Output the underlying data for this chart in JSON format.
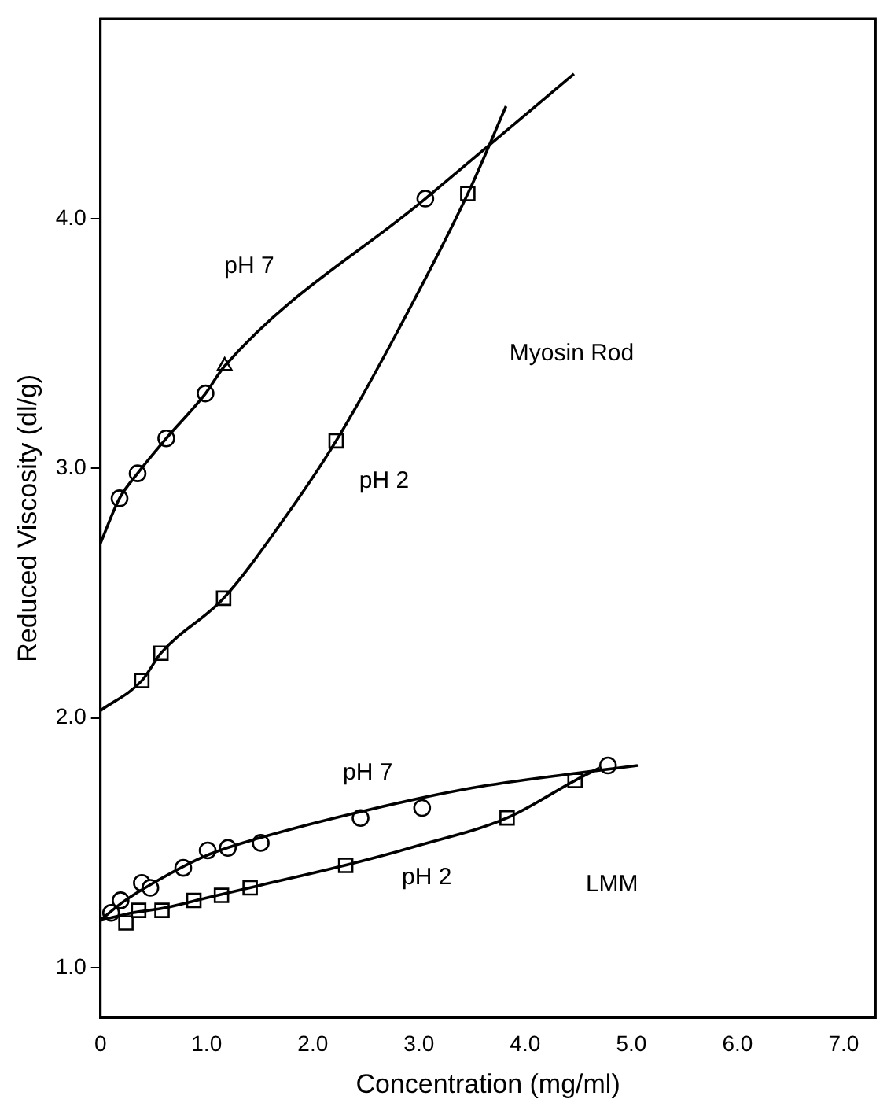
{
  "chart_data": {
    "type": "scatter",
    "xlabel": "Concentration (mg/ml)",
    "ylabel": "Reduced Viscosity (dl/g)",
    "xlim": [
      0,
      7.3
    ],
    "ylim": [
      0.8,
      4.8
    ],
    "xticks": [
      0,
      {
        "value": 1,
        "label": "1.0"
      },
      {
        "value": 2,
        "label": "2.0"
      },
      {
        "value": 3,
        "label": "3.0"
      },
      {
        "value": 4,
        "label": "4.0"
      },
      {
        "value": 5,
        "label": "5.0"
      },
      {
        "value": 6,
        "label": "6.0"
      },
      {
        "value": 7,
        "label": "7.0"
      }
    ],
    "yticks": [
      {
        "value": 1,
        "label": "1.0"
      },
      {
        "value": 2,
        "label": "2.0"
      },
      {
        "value": 3,
        "label": "3.0"
      },
      {
        "value": 4,
        "label": "4.0"
      }
    ],
    "grid": false,
    "legend": false,
    "series": [
      {
        "type": "line",
        "color": "#000000",
        "marker": "none",
        "x": [
          0,
          0.18,
          0.35,
          0.62,
          0.99,
          1.17,
          3.06,
          4.46
        ],
        "values": [
          2.7,
          2.88,
          2.98,
          3.12,
          3.3,
          3.41,
          4.08,
          4.58
        ]
      },
      {
        "type": "line",
        "color": "#000000",
        "marker": "none",
        "x": [
          0,
          0.39,
          0.57,
          1.16,
          1.7,
          2.22,
          2.8,
          3.46,
          3.82
        ],
        "values": [
          2.03,
          2.15,
          2.26,
          2.48,
          2.78,
          3.11,
          3.55,
          4.1,
          4.45
        ]
      },
      {
        "type": "line",
        "color": "#000000",
        "marker": "none",
        "x": [
          0,
          0.2,
          0.5,
          1.0,
          1.5,
          2.5,
          3.5,
          4.5,
          5.06
        ],
        "values": [
          1.19,
          1.26,
          1.34,
          1.45,
          1.52,
          1.63,
          1.72,
          1.78,
          1.81
        ]
      },
      {
        "type": "line",
        "color": "#000000",
        "marker": "none",
        "x": [
          0,
          0.3,
          0.6,
          1.0,
          1.5,
          2.3,
          3.0,
          3.83,
          4.47,
          4.7
        ],
        "values": [
          1.19,
          1.22,
          1.24,
          1.28,
          1.33,
          1.41,
          1.49,
          1.6,
          1.75,
          1.8
        ]
      },
      {
        "type": "scatter",
        "color": "#000000",
        "marker": "circle",
        "x": [
          0.18,
          0.35,
          0.62,
          0.99,
          3.06
        ],
        "values": [
          2.88,
          2.98,
          3.12,
          3.3,
          4.08
        ]
      },
      {
        "type": "scatter",
        "color": "#000000",
        "marker": "triangle",
        "x": [
          1.17
        ],
        "values": [
          3.41
        ]
      },
      {
        "type": "scatter",
        "color": "#000000",
        "marker": "square",
        "x": [
          0.39,
          0.57,
          1.16,
          2.22,
          3.46
        ],
        "values": [
          2.15,
          2.26,
          2.48,
          3.11,
          4.1
        ]
      },
      {
        "type": "scatter",
        "color": "#000000",
        "marker": "circle",
        "x": [
          0.1,
          0.19,
          0.38,
          0.39,
          0.47,
          0.78,
          1.01,
          1.2,
          1.51,
          2.45,
          3.03,
          4.78
        ],
        "values": [
          1.22,
          1.27,
          null,
          1.34,
          1.32,
          1.4,
          1.47,
          1.48,
          1.5,
          1.6,
          1.64,
          1.81
        ]
      },
      {
        "type": "scatter",
        "color": "#000000",
        "marker": "square",
        "x": [
          0.24,
          0.36,
          0.58,
          0.88,
          1.14,
          1.41,
          2.31,
          3.83,
          4.47
        ],
        "values": [
          1.18,
          1.23,
          1.23,
          1.27,
          1.29,
          1.32,
          1.41,
          1.6,
          1.75
        ]
      }
    ],
    "annotations": [
      "pH 7",
      "pH 2",
      "Myosin Rod",
      "pH 7",
      "pH 2",
      "LMM"
    ]
  }
}
